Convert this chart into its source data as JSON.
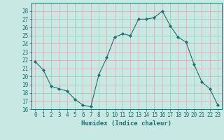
{
  "x": [
    0,
    1,
    2,
    3,
    4,
    5,
    6,
    7,
    8,
    9,
    10,
    11,
    12,
    13,
    14,
    15,
    16,
    17,
    18,
    19,
    20,
    21,
    22,
    23
  ],
  "y": [
    21.8,
    20.8,
    18.8,
    18.5,
    18.2,
    17.2,
    16.5,
    16.3,
    20.2,
    22.3,
    24.8,
    25.2,
    25.0,
    27.0,
    27.0,
    27.2,
    28.0,
    26.2,
    24.8,
    24.2,
    21.5,
    19.3,
    18.5,
    16.5
  ],
  "xlabel": "Humidex (Indice chaleur)",
  "ylim": [
    16,
    29
  ],
  "xlim": [
    -0.5,
    23.5
  ],
  "yticks": [
    16,
    17,
    18,
    19,
    20,
    21,
    22,
    23,
    24,
    25,
    26,
    27,
    28
  ],
  "xticks": [
    0,
    1,
    2,
    3,
    4,
    5,
    6,
    7,
    8,
    9,
    10,
    11,
    12,
    13,
    14,
    15,
    16,
    17,
    18,
    19,
    20,
    21,
    22,
    23
  ],
  "line_color": "#1e6e6e",
  "marker_color": "#1e6e6e",
  "bg_color": "#c8e8e4",
  "grid_color_major": "#d4a0a0",
  "grid_color_minor": "#d4a0a0",
  "axes_color": "#1e6e6e",
  "label_fontsize": 6.5,
  "tick_fontsize": 5.5
}
